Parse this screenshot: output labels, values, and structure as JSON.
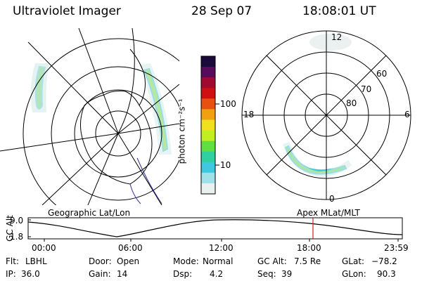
{
  "header": {
    "instrument": "Ultraviolet Imager",
    "date": "28 Sep 07",
    "time": "18:08:01 UT"
  },
  "colorbar": {
    "unit_label": "photon cm⁻²s⁻¹",
    "ticks": [
      "100",
      "10"
    ],
    "colors": [
      "#1a0a3a",
      "#5a0a5a",
      "#a00a30",
      "#d01010",
      "#e85010",
      "#f0a010",
      "#f0e020",
      "#c0f020",
      "#60e040",
      "#30d0a0",
      "#40c8e0",
      "#a0e0e8",
      "#e8f0f0"
    ]
  },
  "left_panel": {
    "caption": "Geographic Lat/Lon"
  },
  "right_panel": {
    "caption": "Apex MLat/MLT",
    "mlt_labels": [
      "12",
      "18",
      "6",
      "0"
    ],
    "mlat_labels": [
      "60",
      "70",
      "80"
    ]
  },
  "timeline": {
    "axis_title": "GC Alt",
    "y_ticks": [
      "9.0",
      "1.8"
    ],
    "x_ticks": [
      "00:00",
      "06:00",
      "12:00",
      "18:00",
      "23:59"
    ],
    "marker_color": "#cc2020"
  },
  "status": {
    "filter_label": "Flt:",
    "filter_value": "LBHL",
    "door_label": "Door:",
    "door_value": "Open",
    "mode_label": "Mode:",
    "mode_value": "Normal",
    "gcalt_label": "GC Alt:",
    "gcalt_value": "7.5 Re",
    "glat_label": "GLat:",
    "glat_value": "−78.2",
    "ip_label": "IP:",
    "ip_value": "36.0",
    "gain_label": "Gain:",
    "gain_value": "14",
    "dsp_label": "Dsp:",
    "dsp_value": "4.2",
    "seq_label": "Seq:",
    "seq_value": "39",
    "glon_label": "GLon:",
    "glon_value": "90.3"
  }
}
